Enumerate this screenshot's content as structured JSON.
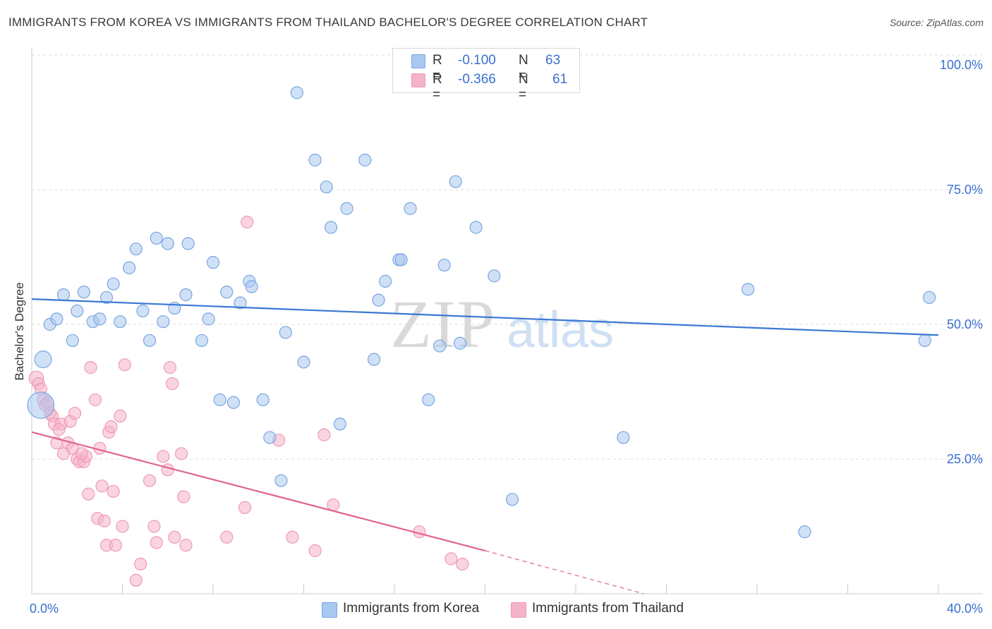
{
  "title": "IMMIGRANTS FROM KOREA VS IMMIGRANTS FROM THAILAND BACHELOR'S DEGREE CORRELATION CHART",
  "source": "Source: ZipAtlas.com",
  "watermark": {
    "zip": "ZIP",
    "atlas": "atlas"
  },
  "legend": {
    "rows": [
      {
        "r_label": "R =",
        "r_value": "-0.100",
        "n_label": "N =",
        "n_value": "63",
        "color": "#a9c8f0"
      },
      {
        "r_label": "R =",
        "r_value": "-0.366",
        "n_label": "N =",
        "n_value": "61",
        "color": "#f5b3c8"
      }
    ]
  },
  "bottom_legend": {
    "korea": "Immigrants from Korea",
    "thailand": "Immigrants from Thailand"
  },
  "colors": {
    "korea_fill": "#a9c8f0",
    "korea_stroke": "#7aa6e0",
    "korea_line": "#3a78d4",
    "thailand_fill": "#f5b3c8",
    "thailand_stroke": "#ee9ab6",
    "thailand_line": "#e06490",
    "axis_text": "#3a6fd0",
    "grid": "#dddddd"
  },
  "chart_data": {
    "type": "scatter",
    "title": "IMMIGRANTS FROM KOREA VS IMMIGRANTS FROM THAILAND BACHELOR'S DEGREE CORRELATION CHART",
    "xlabel": "",
    "ylabel": "Bachelor's Degree",
    "xlim": [
      0,
      40
    ],
    "ylim": [
      0,
      100
    ],
    "x_tick_labels": [
      "0.0%",
      "40.0%"
    ],
    "y_ticks": [
      25,
      50,
      75,
      100
    ],
    "y_tick_labels": [
      "25.0%",
      "50.0%",
      "75.0%",
      "100.0%"
    ],
    "grid": true,
    "legend_position": "top-center",
    "series": [
      {
        "name": "Immigrants from Korea",
        "points": [
          [
            0.4,
            35.0,
            2.2
          ],
          [
            0.5,
            43.5,
            1.4
          ],
          [
            0.8,
            50.0,
            1.0
          ],
          [
            1.1,
            51.0,
            1.0
          ],
          [
            1.4,
            55.5,
            1.0
          ],
          [
            1.8,
            47.0,
            1.0
          ],
          [
            2.0,
            52.5,
            1.0
          ],
          [
            2.3,
            56.0,
            1.0
          ],
          [
            2.7,
            50.5,
            1.0
          ],
          [
            3.0,
            51.0,
            1.0
          ],
          [
            3.3,
            55.0,
            1.0
          ],
          [
            3.6,
            57.5,
            1.0
          ],
          [
            3.9,
            50.5,
            1.0
          ],
          [
            4.3,
            60.5,
            1.0
          ],
          [
            4.6,
            64.0,
            1.0
          ],
          [
            4.9,
            52.5,
            1.0
          ],
          [
            5.2,
            47.0,
            1.0
          ],
          [
            5.5,
            66.0,
            1.0
          ],
          [
            5.8,
            50.5,
            1.0
          ],
          [
            6.0,
            65.0,
            1.0
          ],
          [
            6.3,
            53.0,
            1.0
          ],
          [
            6.8,
            55.5,
            1.0
          ],
          [
            6.9,
            65.0,
            1.0
          ],
          [
            7.5,
            47.0,
            1.0
          ],
          [
            7.8,
            51.0,
            1.0
          ],
          [
            8.0,
            61.5,
            1.0
          ],
          [
            8.3,
            36.0,
            1.0
          ],
          [
            8.6,
            56.0,
            1.0
          ],
          [
            8.9,
            35.5,
            1.0
          ],
          [
            9.2,
            54.0,
            1.0
          ],
          [
            9.6,
            58.0,
            1.0
          ],
          [
            9.7,
            57.0,
            1.0
          ],
          [
            10.2,
            36.0,
            1.0
          ],
          [
            10.5,
            29.0,
            1.0
          ],
          [
            11.0,
            21.0,
            1.0
          ],
          [
            11.2,
            48.5,
            1.0
          ],
          [
            11.7,
            93.0,
            1.0
          ],
          [
            12.0,
            43.0,
            1.0
          ],
          [
            12.5,
            80.5,
            1.0
          ],
          [
            13.0,
            75.5,
            1.0
          ],
          [
            13.2,
            68.0,
            1.0
          ],
          [
            13.6,
            31.5,
            1.0
          ],
          [
            13.9,
            71.5,
            1.0
          ],
          [
            14.7,
            80.5,
            1.0
          ],
          [
            15.1,
            43.5,
            1.0
          ],
          [
            15.3,
            54.5,
            1.0
          ],
          [
            15.6,
            58.0,
            1.0
          ],
          [
            16.2,
            62.0,
            1.0
          ],
          [
            16.3,
            62.0,
            1.0
          ],
          [
            16.7,
            71.5,
            1.0
          ],
          [
            17.5,
            36.0,
            1.0
          ],
          [
            18.0,
            46.0,
            1.0
          ],
          [
            18.2,
            61.0,
            1.0
          ],
          [
            18.7,
            76.5,
            1.0
          ],
          [
            18.9,
            46.5,
            1.0
          ],
          [
            19.6,
            68.0,
            1.0
          ],
          [
            20.4,
            59.0,
            1.0
          ],
          [
            21.2,
            17.5,
            1.0
          ],
          [
            26.1,
            29.0,
            1.0
          ],
          [
            31.6,
            56.5,
            1.0
          ],
          [
            34.1,
            11.5,
            1.0
          ],
          [
            39.4,
            47.0,
            1.0
          ],
          [
            39.6,
            55.0,
            1.0
          ]
        ],
        "trend": {
          "x": [
            0,
            40
          ],
          "y": [
            54.7,
            48.0
          ]
        }
      },
      {
        "name": "Immigrants from Thailand",
        "points": [
          [
            0.2,
            40.0,
            1.2
          ],
          [
            0.3,
            39.0,
            1.0
          ],
          [
            0.4,
            38.0,
            1.0
          ],
          [
            0.5,
            36.0,
            1.0
          ],
          [
            0.6,
            35.0,
            1.0
          ],
          [
            0.7,
            35.5,
            1.0
          ],
          [
            0.8,
            33.5,
            1.0
          ],
          [
            0.9,
            33.0,
            1.0
          ],
          [
            1.0,
            31.5,
            1.0
          ],
          [
            1.1,
            28.0,
            1.0
          ],
          [
            1.3,
            31.5,
            1.0
          ],
          [
            1.4,
            26.0,
            1.0
          ],
          [
            1.6,
            28.0,
            1.0
          ],
          [
            1.7,
            32.0,
            1.0
          ],
          [
            1.8,
            27.0,
            1.0
          ],
          [
            1.9,
            33.5,
            1.0
          ],
          [
            2.0,
            25.0,
            1.0
          ],
          [
            2.1,
            24.5,
            1.0
          ],
          [
            2.3,
            24.5,
            1.0
          ],
          [
            2.4,
            25.5,
            1.0
          ],
          [
            2.5,
            18.5,
            1.0
          ],
          [
            2.6,
            42.0,
            1.0
          ],
          [
            2.8,
            36.0,
            1.0
          ],
          [
            2.9,
            14.0,
            1.0
          ],
          [
            3.0,
            27.0,
            1.0
          ],
          [
            3.1,
            20.0,
            1.0
          ],
          [
            3.2,
            13.5,
            1.0
          ],
          [
            3.3,
            9.0,
            1.0
          ],
          [
            3.4,
            30.0,
            1.0
          ],
          [
            3.5,
            31.0,
            1.0
          ],
          [
            3.6,
            19.0,
            1.0
          ],
          [
            3.7,
            9.0,
            1.0
          ],
          [
            3.9,
            33.0,
            1.0
          ],
          [
            4.0,
            12.5,
            1.0
          ],
          [
            4.1,
            42.5,
            1.0
          ],
          [
            4.6,
            2.5,
            1.0
          ],
          [
            4.8,
            5.5,
            1.0
          ],
          [
            5.2,
            21.0,
            1.0
          ],
          [
            5.4,
            12.5,
            1.0
          ],
          [
            5.5,
            9.5,
            1.0
          ],
          [
            5.8,
            25.5,
            1.0
          ],
          [
            6.0,
            23.0,
            1.0
          ],
          [
            6.1,
            42.0,
            1.0
          ],
          [
            6.2,
            39.0,
            1.0
          ],
          [
            6.3,
            10.5,
            1.0
          ],
          [
            6.6,
            26.0,
            1.0
          ],
          [
            6.7,
            18.0,
            1.0
          ],
          [
            6.8,
            9.0,
            1.0
          ],
          [
            8.6,
            10.5,
            1.0
          ],
          [
            9.4,
            16.0,
            1.0
          ],
          [
            9.5,
            69.0,
            1.0
          ],
          [
            10.9,
            28.5,
            1.0
          ],
          [
            11.5,
            10.5,
            1.0
          ],
          [
            12.5,
            8.0,
            1.0
          ],
          [
            12.9,
            29.5,
            1.0
          ],
          [
            13.3,
            16.5,
            1.0
          ],
          [
            17.1,
            11.5,
            1.0
          ],
          [
            18.5,
            6.5,
            1.0
          ],
          [
            19.0,
            5.5,
            1.0
          ],
          [
            1.2,
            30.5,
            1.0
          ],
          [
            2.2,
            26.0,
            1.0
          ]
        ],
        "trend": {
          "x": [
            0,
            20
          ],
          "y": [
            30.0,
            8.0
          ]
        },
        "trend_extension": {
          "x": [
            20,
            27
          ],
          "y": [
            8.0,
            0.0
          ]
        }
      }
    ]
  }
}
